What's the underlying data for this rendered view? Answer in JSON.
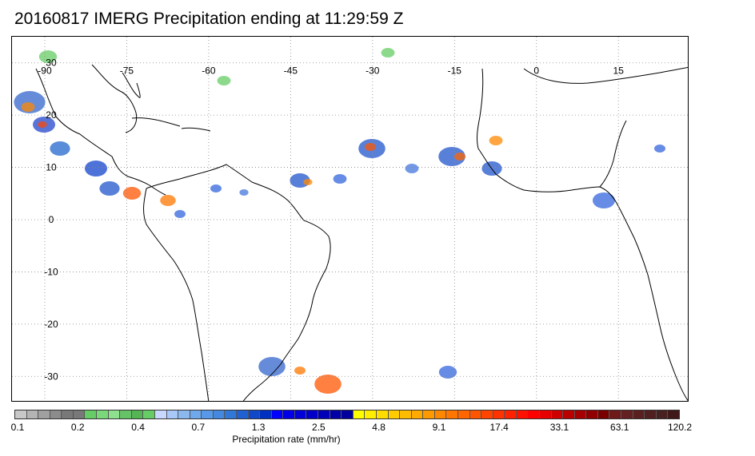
{
  "title": "20160817 IMERG Precipitation ending at 11:29:59 Z",
  "map": {
    "projection": "equirectangular",
    "lon_range": [
      -96,
      28
    ],
    "lat_range": [
      -35,
      35
    ],
    "lon_labels": [
      "-90",
      "-75",
      "-60",
      "-45",
      "-30",
      "-15",
      "0",
      "15"
    ],
    "lat_labels": [
      "30",
      "20",
      "10",
      "0",
      "-10",
      "-20",
      "-30"
    ],
    "grid_style": "dotted",
    "coastline_color": "#000000"
  },
  "colorbar": {
    "colors": [
      "#c8c8c8",
      "#b4b4b4",
      "#a0a0a0",
      "#8c8c8c",
      "#787878",
      "#787878",
      "#66cc66",
      "#7ad87a",
      "#8ee08e",
      "#66c266",
      "#55b555",
      "#66cc66",
      "#c8d8ff",
      "#a8c8f8",
      "#8cb8f0",
      "#70a8ec",
      "#5898e8",
      "#4488e0",
      "#3078d8",
      "#2060d0",
      "#1048c8",
      "#0030c0",
      "#0000ff",
      "#0000e8",
      "#0000d8",
      "#0000c8",
      "#0000b8",
      "#0000a8",
      "#00009c",
      "#ffff00",
      "#ffee00",
      "#ffdd00",
      "#ffcc00",
      "#ffbb00",
      "#ffaa00",
      "#ff9900",
      "#ff8800",
      "#ff7700",
      "#ff6600",
      "#ff5500",
      "#ff4400",
      "#ff3300",
      "#ff2200",
      "#ff1100",
      "#ff0000",
      "#e60000",
      "#d00000",
      "#bb0000",
      "#a60000",
      "#900000",
      "#7a0000",
      "#6e1a1a",
      "#642020",
      "#5a2020",
      "#502020",
      "#482020",
      "#401818"
    ],
    "tick_labels": [
      "0.1",
      "0.2",
      "0.4",
      "0.7",
      "1.3",
      "2.5",
      "4.8",
      "9.1",
      "17.4",
      "33.1",
      "63.1",
      "120.2"
    ],
    "label": "Precipitation rate (mm/hr)"
  }
}
